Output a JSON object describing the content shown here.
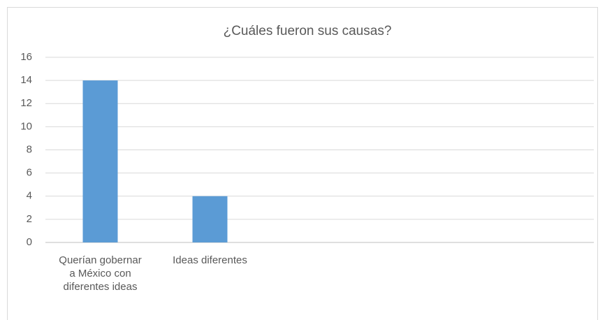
{
  "chart_data": {
    "type": "bar",
    "title": "¿Cuáles fueron sus causas?",
    "categories": [
      "Querían gobernar a México con diferentes ideas",
      "Ideas diferentes",
      null,
      null,
      null
    ],
    "values": [
      14,
      4,
      null,
      null,
      null
    ],
    "color": "#5b9bd5",
    "ylim": [
      0,
      16
    ],
    "yticks": [
      0,
      2,
      4,
      6,
      8,
      10,
      12,
      14,
      16
    ],
    "grid": true
  }
}
